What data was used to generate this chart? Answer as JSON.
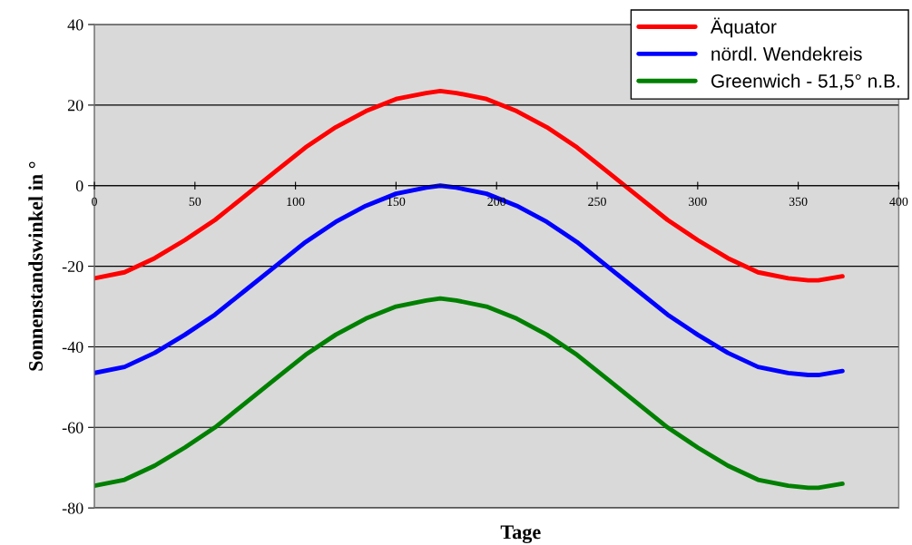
{
  "chart_data": {
    "type": "line",
    "xlabel": "Tage",
    "ylabel": "Sonnenstandswinkel in °",
    "x": [
      0,
      15,
      30,
      45,
      60,
      75,
      90,
      105,
      120,
      135,
      150,
      165,
      172,
      180,
      195,
      210,
      225,
      240,
      255,
      270,
      285,
      300,
      315,
      330,
      345,
      355,
      360,
      372
    ],
    "series": [
      {
        "name": "Äquator",
        "color": "#ff0000",
        "values": [
          -23,
          -21.5,
          -18,
          -13.5,
          -8.5,
          -2.5,
          3.5,
          9.5,
          14.5,
          18.5,
          21.5,
          23,
          23.5,
          23,
          21.5,
          18.5,
          14.5,
          9.5,
          3.5,
          -2.5,
          -8.5,
          -13.5,
          -18,
          -21.5,
          -23,
          -23.5,
          -23.5,
          -22.5
        ]
      },
      {
        "name": "nördl. Wendekreis",
        "color": "#0000ff",
        "values": [
          -46.5,
          -45,
          -41.5,
          -37,
          -32,
          -26,
          -20,
          -14,
          -9,
          -5,
          -2,
          -0.5,
          0,
          -0.5,
          -2,
          -5,
          -9,
          -14,
          -20,
          -26,
          -32,
          -37,
          -41.5,
          -45,
          -46.5,
          -47,
          -47,
          -46
        ]
      },
      {
        "name": "Greenwich - 51,5° n.B.",
        "color": "#008000",
        "values": [
          -74.5,
          -73,
          -69.5,
          -65,
          -60,
          -54,
          -48,
          -42,
          -37,
          -33,
          -30,
          -28.5,
          -28,
          -28.5,
          -30,
          -33,
          -37,
          -42,
          -48,
          -54,
          -60,
          -65,
          -69.5,
          -73,
          -74.5,
          -75,
          -75,
          -74
        ]
      }
    ],
    "xlim": [
      0,
      400
    ],
    "xticks": [
      0,
      50,
      100,
      150,
      200,
      250,
      300,
      350,
      400
    ],
    "ylim": [
      -80,
      40
    ],
    "yticks": [
      -80,
      -60,
      -40,
      -20,
      0,
      20,
      40
    ],
    "grid": "y",
    "legend": "top right",
    "marker": "none",
    "line_style": "solid"
  }
}
